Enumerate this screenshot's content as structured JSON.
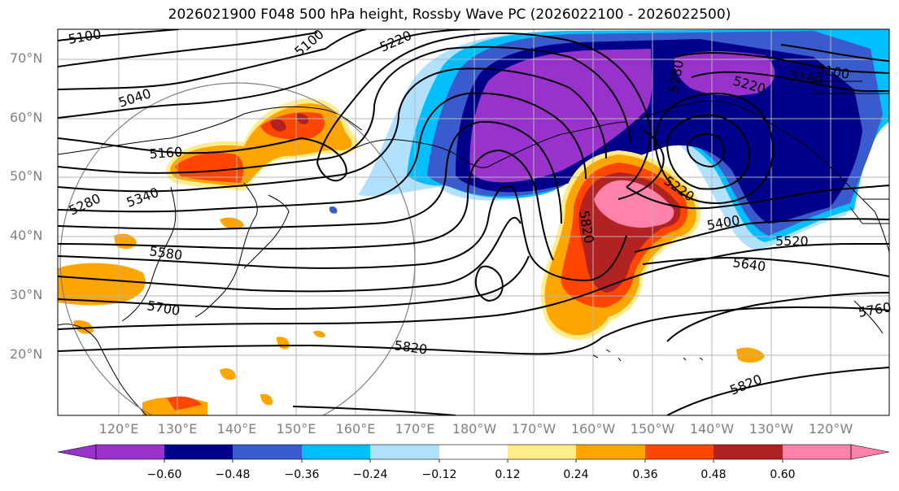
{
  "figure": {
    "title": "2026021900 F048 500 hPa height, Rossby Wave PC (2026022100 - 2026022500)"
  },
  "map": {
    "lat_labels": [
      "70°N",
      "60°N",
      "50°N",
      "40°N",
      "30°N",
      "20°N"
    ],
    "lon_labels": [
      "120°E",
      "130°E",
      "140°E",
      "150°E",
      "160°E",
      "170°E",
      "180°W",
      "170°W",
      "160°W",
      "150°W",
      "140°W",
      "130°W",
      "120°W"
    ],
    "contour_labels": [
      {
        "id": "c5100a",
        "text": "5100"
      },
      {
        "id": "c5100b",
        "text": "5100"
      },
      {
        "id": "c5100c",
        "text": "5100"
      },
      {
        "id": "c5040",
        "text": "5040"
      },
      {
        "id": "c5160a",
        "text": "5160"
      },
      {
        "id": "c5160b",
        "text": "5160"
      },
      {
        "id": "c5220a",
        "text": "5220"
      },
      {
        "id": "c5220b",
        "text": "5220"
      },
      {
        "id": "c5220c",
        "text": "5220"
      },
      {
        "id": "c5280a",
        "text": "5280"
      },
      {
        "id": "c5280b",
        "text": "5280"
      },
      {
        "id": "c5340",
        "text": "5340"
      },
      {
        "id": "c5400",
        "text": "5400"
      },
      {
        "id": "c5520",
        "text": "5520"
      },
      {
        "id": "c5580",
        "text": "5580"
      },
      {
        "id": "c5640",
        "text": "5640"
      },
      {
        "id": "c5700",
        "text": "5700"
      },
      {
        "id": "c5760",
        "text": "5760"
      },
      {
        "id": "c5820a",
        "text": "5820"
      },
      {
        "id": "c5820b",
        "text": "5820"
      },
      {
        "id": "c5820c",
        "text": "5820"
      }
    ]
  },
  "colorbar": {
    "bins": [
      {
        "color": "#9932cc"
      },
      {
        "color": "#00008b"
      },
      {
        "color": "#3a5bcd"
      },
      {
        "color": "#00bfff"
      },
      {
        "color": "#b0e2ff"
      },
      {
        "color": "#ffffff"
      },
      {
        "color": "#ffec8b"
      },
      {
        "color": "#ffa500"
      },
      {
        "color": "#ff4500"
      },
      {
        "color": "#b22222"
      },
      {
        "color": "#ff82ab"
      }
    ],
    "ticks": [
      "−0.60",
      "−0.48",
      "−0.36",
      "−0.24",
      "−0.12",
      "0.12",
      "0.24",
      "0.36",
      "0.48",
      "0.60"
    ]
  }
}
